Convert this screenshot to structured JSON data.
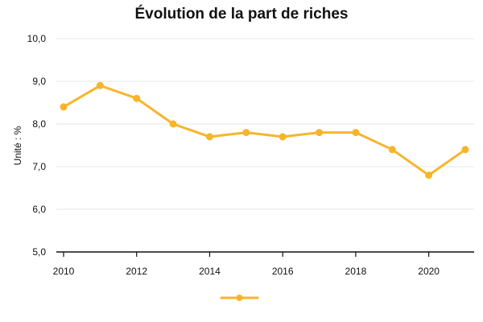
{
  "chart_data": {
    "type": "line",
    "title": "Évolution de la part de riches",
    "xlabel": "",
    "ylabel": "Unité : %",
    "x": [
      2010,
      2011,
      2012,
      2013,
      2014,
      2015,
      2016,
      2017,
      2018,
      2019,
      2020,
      2021
    ],
    "x_tick_labels": [
      "2010",
      "2012",
      "2014",
      "2016",
      "2018",
      "2020"
    ],
    "y_tick_labels": [
      "10,0",
      "9,0",
      "8,0",
      "7,0",
      "6,0",
      "5,0"
    ],
    "xlim": [
      2010,
      2021
    ],
    "ylim": [
      5.0,
      10.0
    ],
    "grid": true,
    "legend_position": "bottom-center",
    "series": [
      {
        "name": "",
        "color": "#F7B52C",
        "values": [
          8.4,
          8.9,
          8.6,
          8.0,
          7.7,
          7.8,
          7.7,
          7.8,
          7.8,
          7.4,
          6.8,
          7.4
        ]
      }
    ]
  }
}
